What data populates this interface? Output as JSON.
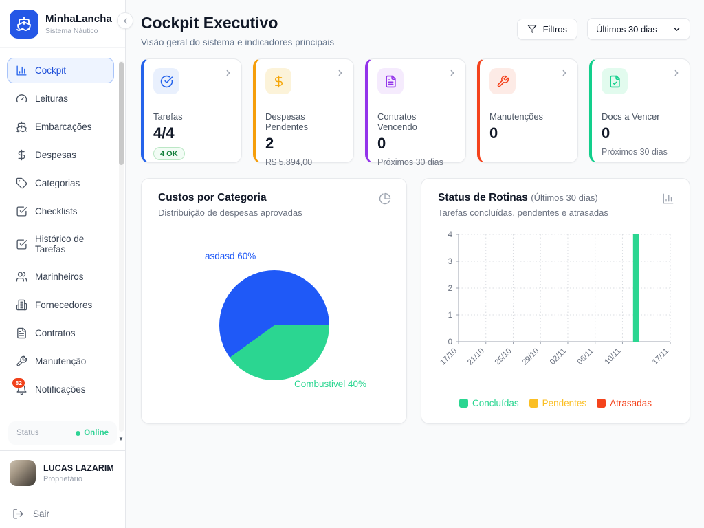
{
  "brand": {
    "name": "MinhaLancha",
    "subtitle": "Sistema Náutico"
  },
  "sidebar": {
    "items": [
      {
        "id": "cockpit",
        "label": "Cockpit",
        "icon": "bar-chart",
        "active": true
      },
      {
        "id": "leituras",
        "label": "Leituras",
        "icon": "gauge",
        "active": false
      },
      {
        "id": "embarcacoes",
        "label": "Embarcações",
        "icon": "ship",
        "active": false
      },
      {
        "id": "despesas",
        "label": "Despesas",
        "icon": "dollar",
        "active": false
      },
      {
        "id": "categorias",
        "label": "Categorias",
        "icon": "tag",
        "active": false
      },
      {
        "id": "checklists",
        "label": "Checklists",
        "icon": "check-square",
        "active": false
      },
      {
        "id": "historico-de-tarefas",
        "label": "Histórico de Tarefas",
        "icon": "check-square",
        "active": false
      },
      {
        "id": "marinheiros",
        "label": "Marinheiros",
        "icon": "users",
        "active": false
      },
      {
        "id": "fornecedores",
        "label": "Fornecedores",
        "icon": "building",
        "active": false
      },
      {
        "id": "contratos",
        "label": "Contratos",
        "icon": "file-text",
        "active": false
      },
      {
        "id": "manutencao",
        "label": "Manutenção",
        "icon": "wrench",
        "active": false
      },
      {
        "id": "notificacoes",
        "label": "Notificações",
        "icon": "bell",
        "active": false,
        "badge": "82"
      }
    ],
    "status_label": "Status",
    "status_value": "Online"
  },
  "user": {
    "name": "LUCAS LAZARIM",
    "role": "Proprietário",
    "logout_label": "Sair"
  },
  "header": {
    "title": "Cockpit Executivo",
    "subtitle": "Visão geral do sistema e indicadores principais",
    "filters_label": "Filtros",
    "period_value": "Últimos 30 dias"
  },
  "kpi_cards": [
    {
      "label": "Tarefas",
      "value": "4/4",
      "badge": "4 OK",
      "sub": "",
      "icon": "check-circle",
      "accent": "#2563eb",
      "icon_bg": "#e9f0fd",
      "icon_color": "#2563eb"
    },
    {
      "label": "Despesas Pendentes",
      "value": "2",
      "sub": "R$ 5.894,00",
      "icon": "dollar",
      "accent": "#f59e0b",
      "icon_bg": "#fcf3d9",
      "icon_color": "#f5a609"
    },
    {
      "label": "Contratos Vencendo",
      "value": "0",
      "sub": "Próximos 30 dias",
      "icon": "file-text",
      "accent": "#9333ea",
      "icon_bg": "#f5ebfd",
      "icon_color": "#9333ea"
    },
    {
      "label": "Manutenções",
      "value": "0",
      "sub": "",
      "icon": "wrench",
      "accent": "#f4421c",
      "icon_bg": "#fdebe6",
      "icon_color": "#f4421c"
    },
    {
      "label": "Docs a Vencer",
      "value": "0",
      "sub": "Próximos 30 dias",
      "icon": "file-check",
      "accent": "#12cf8c",
      "icon_bg": "#e2fbee",
      "icon_color": "#12cf8c"
    }
  ],
  "chart_data": [
    {
      "type": "pie",
      "title": "Custos por Categoria",
      "subtitle": "Distribuição de despesas aprovadas",
      "labels": [
        "asdasd",
        "Combustivel"
      ],
      "values": [
        60,
        40
      ],
      "unit": "%",
      "colors": [
        "#1f59f7",
        "#2bd691"
      ],
      "start_angle_from_top_deg": 234,
      "legend_position": "none",
      "data_labels": [
        {
          "text": "asdasd 60%",
          "color": "#1f59f7",
          "position": "top-left"
        },
        {
          "text": "Combustivel 40%",
          "color": "#2bd691",
          "position": "bottom-right"
        }
      ]
    },
    {
      "type": "bar",
      "title": "Status de Rotinas",
      "title_suffix": "(Últimos 30 dias)",
      "subtitle": "Tarefas concluídas, pendentes e atrasadas",
      "x_axis": {
        "tick_labels": [
          "17/10",
          "21/10",
          "25/10",
          "29/10",
          "02/11",
          "06/11",
          "10/11",
          "17/11"
        ],
        "tick_day_offsets": [
          0,
          4,
          8,
          12,
          16,
          20,
          24,
          31
        ],
        "range_days": 31,
        "label_rotation_deg": -45
      },
      "y_axis": {
        "ticks": [
          0,
          1,
          2,
          3,
          4
        ],
        "ylim": [
          0,
          4
        ]
      },
      "grid": "dotted",
      "series": [
        {
          "name": "Concluídas",
          "color": "#2bd691",
          "points": [
            {
              "x": "12/11",
              "day_offset": 26,
              "y": 4
            }
          ]
        },
        {
          "name": "Pendentes",
          "color": "#fbbf24",
          "points": []
        },
        {
          "name": "Atrasadas",
          "color": "#f4431c",
          "points": []
        }
      ],
      "legend_position": "bottom"
    }
  ]
}
